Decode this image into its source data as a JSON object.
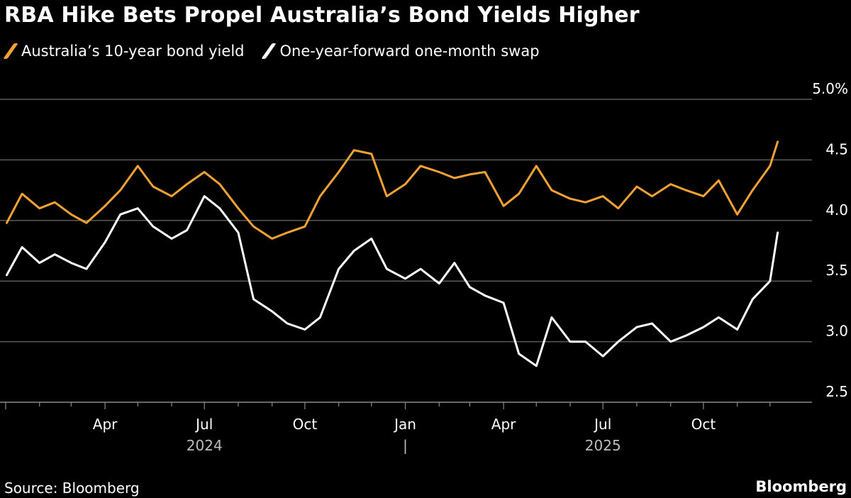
{
  "title": "RBA Hike Bets Propel Australia’s Bond Yields Higher",
  "legend": [
    {
      "label": "Australia’s 10-year bond yield",
      "color": "#f4a234"
    },
    {
      "label": "One-year-forward one-month swap",
      "color": "#ffffff"
    }
  ],
  "source": "Source: Bloomberg",
  "brand": "Bloomberg",
  "chart_data": {
    "type": "line",
    "title": "RBA Hike Bets Propel Australia’s Bond Yields Higher",
    "xlabel": "",
    "ylabel": "",
    "ylim": [
      2.5,
      5.0
    ],
    "y_ticks": [
      "5.0%",
      "4.5",
      "4.0",
      "3.5",
      "3.0",
      "2.5"
    ],
    "x_ticks": [
      "Apr",
      "Jul",
      "Oct",
      "Jan",
      "Apr",
      "Jul",
      "Oct"
    ],
    "year_labels": [
      "2024",
      "|",
      "2025"
    ],
    "grid": true,
    "legend_position": "top-left",
    "x": [
      "2024-01-02",
      "2024-01-16",
      "2024-02-01",
      "2024-02-15",
      "2024-03-01",
      "2024-03-15",
      "2024-04-01",
      "2024-04-15",
      "2024-05-01",
      "2024-05-15",
      "2024-06-01",
      "2024-06-15",
      "2024-07-01",
      "2024-07-15",
      "2024-08-01",
      "2024-08-15",
      "2024-09-01",
      "2024-09-15",
      "2024-10-01",
      "2024-10-15",
      "2024-11-01",
      "2024-11-15",
      "2024-12-01",
      "2024-12-15",
      "2025-01-01",
      "2025-01-15",
      "2025-02-01",
      "2025-02-15",
      "2025-03-01",
      "2025-03-15",
      "2025-04-01",
      "2025-04-15",
      "2025-05-01",
      "2025-05-15",
      "2025-06-01",
      "2025-06-15",
      "2025-07-01",
      "2025-07-15",
      "2025-08-01",
      "2025-08-15",
      "2025-09-01",
      "2025-09-15",
      "2025-10-01",
      "2025-10-15",
      "2025-11-01",
      "2025-11-15",
      "2025-12-01",
      "2025-12-08"
    ],
    "series": [
      {
        "name": "Australia’s 10-year bond yield",
        "color": "#f4a234",
        "values": [
          3.98,
          4.22,
          4.1,
          4.15,
          4.05,
          3.98,
          4.12,
          4.25,
          4.45,
          4.28,
          4.2,
          4.3,
          4.4,
          4.3,
          4.1,
          3.95,
          3.85,
          3.9,
          3.95,
          4.2,
          4.4,
          4.58,
          4.55,
          4.2,
          4.3,
          4.45,
          4.4,
          4.35,
          4.38,
          4.4,
          4.12,
          4.22,
          4.45,
          4.25,
          4.18,
          4.15,
          4.2,
          4.1,
          4.28,
          4.2,
          4.3,
          4.25,
          4.2,
          4.33,
          4.05,
          4.25,
          4.45,
          4.65
        ]
      },
      {
        "name": "One-year-forward one-month swap",
        "color": "#ffffff",
        "values": [
          3.55,
          3.78,
          3.65,
          3.72,
          3.65,
          3.6,
          3.82,
          4.05,
          4.1,
          3.95,
          3.85,
          3.92,
          4.2,
          4.1,
          3.9,
          3.35,
          3.25,
          3.15,
          3.1,
          3.2,
          3.6,
          3.75,
          3.85,
          3.6,
          3.52,
          3.6,
          3.48,
          3.65,
          3.45,
          3.38,
          3.32,
          2.9,
          2.8,
          3.2,
          3.0,
          3.0,
          2.88,
          3.0,
          3.12,
          3.15,
          3.0,
          3.05,
          3.12,
          3.2,
          3.1,
          3.35,
          3.5,
          3.9
        ]
      }
    ]
  }
}
